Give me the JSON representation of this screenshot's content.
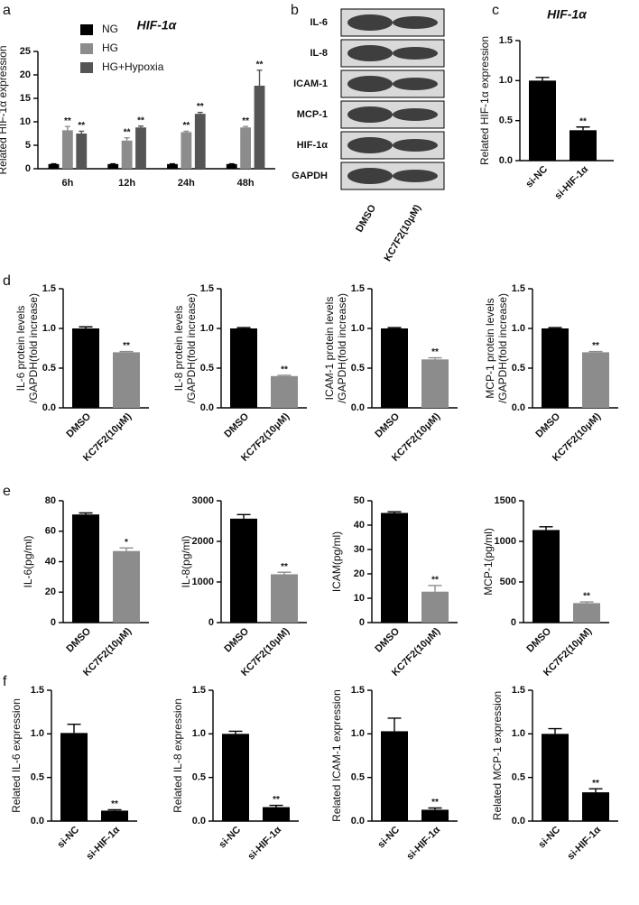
{
  "chart_data": [
    {
      "panel": "a",
      "type": "bar",
      "title": "HIF-1α",
      "ylabel": "Related HIF-1α expression",
      "categories": [
        "6h",
        "12h",
        "24h",
        "48h"
      ],
      "series": [
        {
          "name": "NG",
          "color": "#000000",
          "values": [
            1,
            1,
            1,
            1
          ],
          "errors": [
            0.05,
            0.05,
            0.05,
            0.05
          ]
        },
        {
          "name": "HG",
          "color": "#8c8c8c",
          "values": [
            8.2,
            6.0,
            7.8,
            8.8
          ],
          "errors": [
            0.8,
            0.6,
            0.2,
            0.2
          ],
          "significance": [
            "**",
            "**",
            "**",
            "**"
          ]
        },
        {
          "name": "HG+Hypoxia",
          "color": "#555555",
          "values": [
            7.5,
            8.8,
            11.7,
            17.7
          ],
          "errors": [
            0.5,
            0.3,
            0.3,
            3.3
          ],
          "significance": [
            "**",
            "**",
            "**",
            "**"
          ]
        }
      ],
      "ylim": [
        0,
        25
      ],
      "yticks": [
        0,
        5,
        10,
        15,
        20,
        25
      ],
      "legend": "upper left"
    },
    {
      "panel": "b",
      "type": "blot",
      "rows": [
        "IL-6",
        "IL-8",
        "ICAM-1",
        "MCP-1",
        "HIF-1α",
        "GAPDH"
      ],
      "columns": [
        "DMSO",
        "KC7F2(10μM)"
      ]
    },
    {
      "panel": "c",
      "type": "bar",
      "title": "HIF-1α",
      "ylabel": "Related HIF-1α expression",
      "categories": [
        "si-NC",
        "si-HIF-1α"
      ],
      "values": [
        1.0,
        0.38
      ],
      "errors": [
        0.04,
        0.04
      ],
      "significance": [
        null,
        "**"
      ],
      "colors": [
        "#000000",
        "#000000"
      ],
      "ylim": [
        0,
        1.5
      ],
      "yticks": [
        {
          "value": 0,
          "label": "0.0"
        },
        0.5,
        {
          "value": 1,
          "label": "1.0"
        },
        1.5
      ]
    },
    {
      "panel": "d",
      "type": "bar",
      "ylabel": [
        "IL-6 protein levels",
        "/GAPDH(fold increase)"
      ],
      "categories": [
        "DMSO",
        "KC7F2(10μM)"
      ],
      "values": [
        1.0,
        0.7
      ],
      "errors": [
        0.02,
        0.01
      ],
      "significance": [
        null,
        "**"
      ],
      "colors": [
        "#000000",
        "#8c8c8c"
      ],
      "ylim": [
        0,
        1.5
      ],
      "yticks": [
        {
          "value": 0,
          "label": "0.0"
        },
        0.5,
        {
          "value": 1,
          "label": "1.0"
        },
        1.5
      ]
    },
    {
      "type": "bar",
      "ylabel": [
        "IL-8 protein levels",
        "/GAPDH(fold increase)"
      ],
      "categories": [
        "DMSO",
        "KC7F2(10μM)"
      ],
      "values": [
        1.0,
        0.4
      ],
      "errors": [
        0.01,
        0.01
      ],
      "significance": [
        null,
        "**"
      ],
      "colors": [
        "#000000",
        "#8c8c8c"
      ],
      "ylim": [
        0,
        1.5
      ],
      "yticks": [
        {
          "value": 0,
          "label": "0.0"
        },
        0.5,
        {
          "value": 1,
          "label": "1.0"
        },
        1.5
      ]
    },
    {
      "type": "bar",
      "ylabel": [
        "ICAM-1 protein levels",
        "/GAPDH(fold increase)"
      ],
      "categories": [
        "DMSO",
        "KC7F2(10μM)"
      ],
      "values": [
        1.0,
        0.61
      ],
      "errors": [
        0.01,
        0.02
      ],
      "significance": [
        null,
        "**"
      ],
      "colors": [
        "#000000",
        "#8c8c8c"
      ],
      "ylim": [
        0,
        1.5
      ],
      "yticks": [
        {
          "value": 0,
          "label": "0.0"
        },
        0.5,
        {
          "value": 1,
          "label": "1.0"
        },
        1.5
      ]
    },
    {
      "type": "bar",
      "ylabel": [
        "MCP-1 protein levels",
        "/GAPDH(fold increase)"
      ],
      "categories": [
        "DMSO",
        "KC7F2(10μM)"
      ],
      "values": [
        1.0,
        0.7
      ],
      "errors": [
        0.01,
        0.01
      ],
      "significance": [
        null,
        "**"
      ],
      "colors": [
        "#000000",
        "#8c8c8c"
      ],
      "ylim": [
        0,
        1.5
      ],
      "yticks": [
        {
          "value": 0,
          "label": "0.0"
        },
        0.5,
        {
          "value": 1,
          "label": "1.0"
        },
        1.5
      ]
    },
    {
      "panel": "e",
      "type": "bar",
      "ylabel": "IL-6(pg/ml)",
      "categories": [
        "DMSO",
        "KC7F2(10μM)"
      ],
      "values": [
        71,
        47
      ],
      "errors": [
        1,
        2
      ],
      "significance": [
        null,
        "*"
      ],
      "colors": [
        "#000000",
        "#8c8c8c"
      ],
      "ylim": [
        0,
        80
      ],
      "yticks": [
        0,
        20,
        40,
        60,
        80
      ]
    },
    {
      "type": "bar",
      "ylabel": "IL-8(pg/ml)",
      "categories": [
        "DMSO",
        "KC7F2(10μM)"
      ],
      "values": [
        2560,
        1190
      ],
      "errors": [
        100,
        50
      ],
      "significance": [
        null,
        "**"
      ],
      "colors": [
        "#000000",
        "#8c8c8c"
      ],
      "ylim": [
        0,
        3000
      ],
      "yticks": [
        0,
        1000,
        2000,
        3000
      ]
    },
    {
      "type": "bar",
      "ylabel": "ICAM(pg/ml)",
      "categories": [
        "DMSO",
        "KC7F2(10μM)"
      ],
      "values": [
        45,
        12.7
      ],
      "errors": [
        0.5,
        2.5
      ],
      "significance": [
        null,
        "**"
      ],
      "colors": [
        "#000000",
        "#8c8c8c"
      ],
      "ylim": [
        0,
        50
      ],
      "yticks": [
        0,
        10,
        20,
        30,
        40,
        50
      ]
    },
    {
      "type": "bar",
      "ylabel": "MCP-1(pg/ml)",
      "categories": [
        "DMSO",
        "KC7F2(10μM)"
      ],
      "values": [
        1140,
        240
      ],
      "errors": [
        40,
        15
      ],
      "significance": [
        null,
        "**"
      ],
      "colors": [
        "#000000",
        "#8c8c8c"
      ],
      "ylim": [
        0,
        1500
      ],
      "yticks": [
        0,
        500,
        1000,
        1500
      ]
    },
    {
      "panel": "f",
      "type": "bar",
      "ylabel": "Related IL-6 expression",
      "categories": [
        "si-NC",
        "si-HIF-1α"
      ],
      "values": [
        1.01,
        0.12
      ],
      "errors": [
        0.1,
        0.01
      ],
      "significance": [
        null,
        "**"
      ],
      "colors": [
        "#000000",
        "#000000"
      ],
      "ylim": [
        0,
        1.5
      ],
      "yticks": [
        {
          "value": 0,
          "label": "0.0"
        },
        0.5,
        {
          "value": 1,
          "label": "1.0"
        },
        1.5
      ]
    },
    {
      "type": "bar",
      "ylabel": "Related IL-8 expression",
      "categories": [
        "si-NC",
        "si-HIF-1α"
      ],
      "values": [
        1.0,
        0.16
      ],
      "errors": [
        0.03,
        0.02
      ],
      "significance": [
        null,
        "**"
      ],
      "colors": [
        "#000000",
        "#000000"
      ],
      "ylim": [
        0,
        1.5
      ],
      "yticks": [
        {
          "value": 0,
          "label": "0.0"
        },
        0.5,
        {
          "value": 1,
          "label": "1.0"
        },
        1.5
      ]
    },
    {
      "type": "bar",
      "ylabel": "Related ICAM-1 expression",
      "categories": [
        "si-NC",
        "si-HIF-1α"
      ],
      "values": [
        1.03,
        0.13
      ],
      "errors": [
        0.15,
        0.02
      ],
      "significance": [
        null,
        "**"
      ],
      "colors": [
        "#000000",
        "#000000"
      ],
      "ylim": [
        0,
        1.5
      ],
      "yticks": [
        {
          "value": 0,
          "label": "0.0"
        },
        0.5,
        {
          "value": 1,
          "label": "1.0"
        },
        1.5
      ]
    },
    {
      "type": "bar",
      "ylabel": "Related MCP-1 expression",
      "categories": [
        "si-NC",
        "si-HIF-1α"
      ],
      "values": [
        1.0,
        0.33
      ],
      "errors": [
        0.06,
        0.04
      ],
      "significance": [
        null,
        "**"
      ],
      "colors": [
        "#000000",
        "#000000"
      ],
      "ylim": [
        0,
        1.5
      ],
      "yticks": [
        {
          "value": 0,
          "label": "0.0"
        },
        0.5,
        {
          "value": 1,
          "label": "1.0"
        },
        1.5
      ]
    }
  ]
}
